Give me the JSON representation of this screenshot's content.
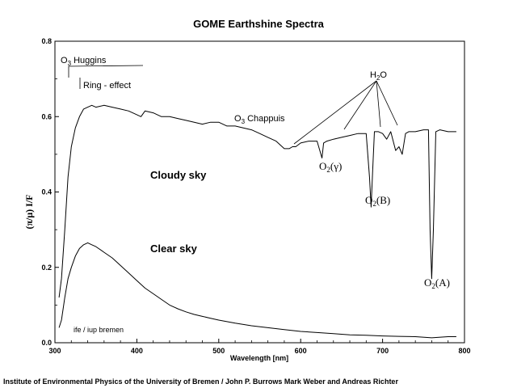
{
  "chart_data": {
    "type": "line",
    "title": "GOME Earthshine Spectra",
    "xlabel": "Wavelength [nm]",
    "ylabel": "(π/μ) I/F",
    "xlim": [
      300,
      800
    ],
    "ylim": [
      0,
      0.8
    ],
    "x_ticks": [
      "300",
      "400",
      "500",
      "600",
      "700",
      "800"
    ],
    "y_ticks": [
      "0.0",
      "0.2",
      "0.4",
      "0.6",
      "0.8"
    ],
    "grid": false,
    "series": [
      {
        "name": "Cloudy sky",
        "x": [
          305,
          308,
          312,
          316,
          320,
          325,
          330,
          335,
          340,
          345,
          350,
          360,
          370,
          380,
          390,
          400,
          405,
          410,
          420,
          430,
          440,
          450,
          460,
          470,
          480,
          490,
          500,
          510,
          520,
          530,
          540,
          550,
          560,
          570,
          580,
          586,
          590,
          594,
          600,
          610,
          620,
          626,
          628,
          632,
          640,
          650,
          660,
          670,
          680,
          684,
          686,
          688,
          690,
          695,
          700,
          705,
          710,
          716,
          720,
          724,
          728,
          732,
          740,
          750,
          756,
          758,
          760,
          762,
          765,
          770,
          780,
          790
        ],
        "y": [
          0.12,
          0.17,
          0.3,
          0.44,
          0.52,
          0.57,
          0.6,
          0.62,
          0.625,
          0.63,
          0.625,
          0.63,
          0.625,
          0.62,
          0.615,
          0.605,
          0.6,
          0.615,
          0.61,
          0.6,
          0.6,
          0.595,
          0.59,
          0.585,
          0.58,
          0.585,
          0.585,
          0.575,
          0.575,
          0.57,
          0.565,
          0.555,
          0.545,
          0.535,
          0.515,
          0.515,
          0.52,
          0.52,
          0.53,
          0.535,
          0.535,
          0.49,
          0.53,
          0.535,
          0.54,
          0.545,
          0.55,
          0.555,
          0.555,
          0.44,
          0.36,
          0.46,
          0.56,
          0.56,
          0.555,
          0.54,
          0.56,
          0.51,
          0.52,
          0.5,
          0.555,
          0.56,
          0.56,
          0.565,
          0.565,
          0.3,
          0.17,
          0.3,
          0.56,
          0.565,
          0.56,
          0.56
        ]
      },
      {
        "name": "Clear sky",
        "x": [
          305,
          308,
          312,
          316,
          320,
          325,
          330,
          335,
          340,
          345,
          350,
          360,
          370,
          380,
          390,
          400,
          410,
          420,
          430,
          440,
          450,
          460,
          470,
          480,
          490,
          500,
          520,
          540,
          560,
          580,
          600,
          620,
          640,
          660,
          680,
          700,
          720,
          740,
          760,
          780,
          790
        ],
        "y": [
          0.04,
          0.06,
          0.12,
          0.17,
          0.2,
          0.23,
          0.25,
          0.26,
          0.265,
          0.26,
          0.255,
          0.24,
          0.225,
          0.205,
          0.185,
          0.165,
          0.145,
          0.13,
          0.115,
          0.1,
          0.09,
          0.082,
          0.075,
          0.07,
          0.065,
          0.06,
          0.052,
          0.045,
          0.04,
          0.035,
          0.03,
          0.027,
          0.024,
          0.021,
          0.02,
          0.018,
          0.017,
          0.016,
          0.013,
          0.016,
          0.016
        ]
      }
    ],
    "annotations": {
      "o3_huggins": "O3 Huggins",
      "ring_effect": "Ring - effect",
      "o3_chappuis": "O3 Chappuis",
      "h2o": "H2O",
      "o2_gamma": "O2(γ)",
      "o2_b": "O2(B)",
      "o2_a": "O2(A)",
      "cloudy": "Cloudy sky",
      "clear": "Clear sky",
      "credit": "ife / iup bremen"
    }
  },
  "footer": "Institute of Environmental Physics of the University of Bremen /  John P. Burrows Mark Weber and Andreas Richter"
}
